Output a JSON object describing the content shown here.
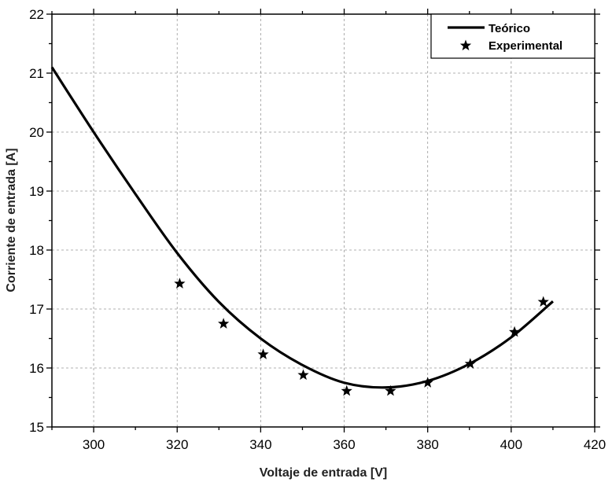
{
  "chart_data": {
    "type": "line",
    "title": "",
    "xlabel": "Voltaje de entrada [V]",
    "ylabel": "Corriente de entrada [A]",
    "xlim": [
      290,
      420
    ],
    "ylim": [
      15,
      22
    ],
    "xticks": [
      300,
      320,
      340,
      360,
      380,
      400,
      420
    ],
    "yticks": [
      15,
      16,
      17,
      18,
      19,
      20,
      21,
      22
    ],
    "grid": true,
    "legend_position": "top-right",
    "series": [
      {
        "name": "Teórico",
        "style": "solid-line",
        "color": "#000000",
        "x": [
          290,
          300,
          310,
          320,
          330,
          340,
          350,
          360,
          370,
          380,
          390,
          400,
          410
        ],
        "y": [
          21.1,
          20.0,
          18.95,
          17.95,
          17.12,
          16.5,
          16.05,
          15.75,
          15.67,
          15.78,
          16.07,
          16.52,
          17.13
        ]
      },
      {
        "name": "Experimental",
        "style": "star-marker",
        "color": "#000000",
        "x": [
          320.6,
          331.1,
          340.6,
          350.2,
          360.6,
          371.1,
          380.0,
          390.2,
          400.8,
          407.7
        ],
        "y": [
          17.43,
          16.75,
          16.23,
          15.88,
          15.61,
          15.61,
          15.75,
          16.07,
          16.61,
          17.12
        ]
      }
    ]
  },
  "legend": {
    "items": [
      {
        "label": "Teórico",
        "icon": "line-icon"
      },
      {
        "label": "Experimental",
        "icon": "star-icon"
      }
    ]
  },
  "colors": {
    "line": "#000000",
    "grid": "#999999",
    "axis": "#000000"
  }
}
